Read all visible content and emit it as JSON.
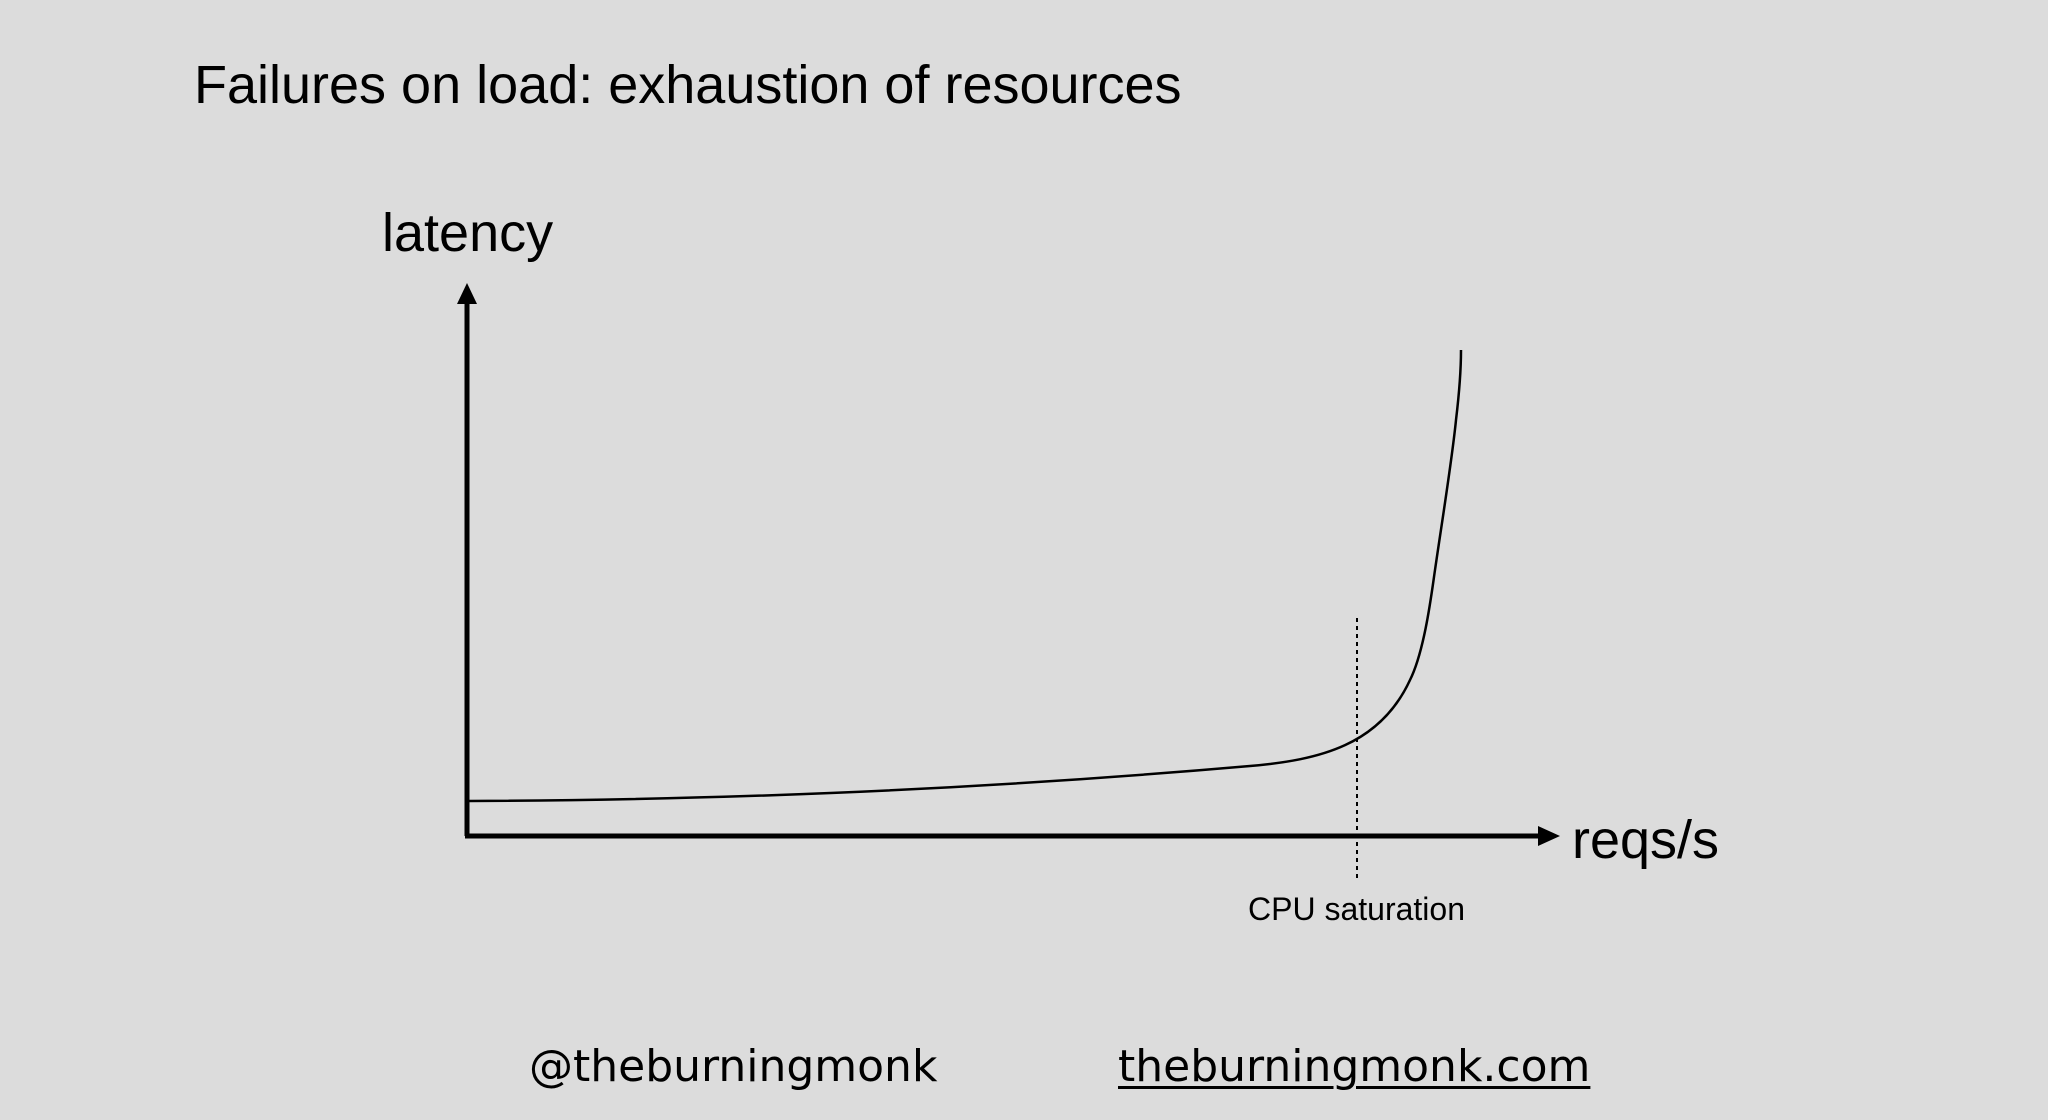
{
  "slide": {
    "title": "Failures on load: exhaustion of resources"
  },
  "diagram": {
    "y_axis_label": "latency",
    "x_axis_label": "reqs/s",
    "marker_label": "CPU saturation",
    "curve_shape": "flat, slowly rising latency that turns sharply upward past the CPU saturation point",
    "marker_style": "dotted vertical line"
  },
  "footer": {
    "handle": "@theburningmonk",
    "site": "theburningmonk.com"
  },
  "colors": {
    "background": "#dcdcdc",
    "ink": "#000000"
  }
}
